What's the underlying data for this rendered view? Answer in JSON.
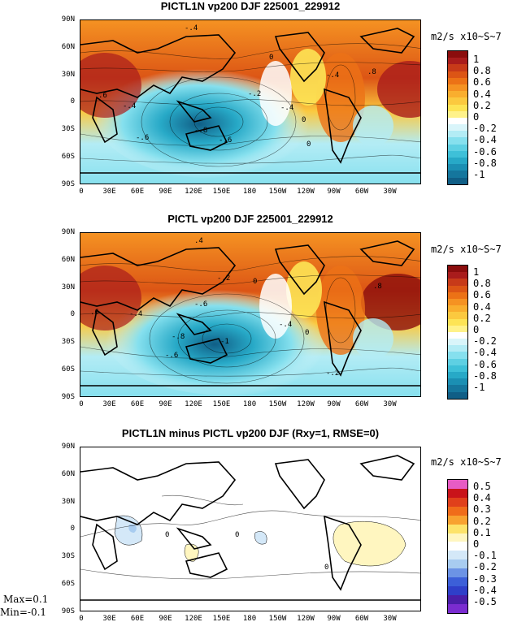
{
  "panels": [
    {
      "title": "PICTL1N vp200 DJF 225001_229912",
      "units": "m2/s x10~S~7",
      "colorbar_labels": [
        "1",
        "0.8",
        "0.6",
        "0.4",
        "0.2",
        "0",
        "-0.2",
        "-0.4",
        "-0.6",
        "-0.8",
        "-1"
      ],
      "contour_labels": [
        "-.4",
        "0",
        "-.2",
        "-.4",
        ".8",
        ".6",
        "-.4",
        "-.6",
        "-.8",
        "0",
        "-.4",
        "-.6",
        "0"
      ]
    },
    {
      "title": "PICTL vp200 DJF 225001_229912",
      "units": "m2/s x10~S~7",
      "colorbar_labels": [
        "1",
        "0.8",
        "0.6",
        "0.4",
        "0.2",
        "0",
        "-0.2",
        "-0.4",
        "-0.6",
        "-0.8",
        "-1"
      ],
      "contour_labels": [
        ".4",
        "0",
        "-.2",
        ".6",
        ".8",
        "-.4",
        "-.6",
        "-.4",
        "-.8",
        "-1",
        "-.6",
        "0",
        "-.2"
      ]
    },
    {
      "title": "PICTL1N minus PICTL vp200 DJF (Rxy=1, RMSE=0)",
      "units": "m2/s x10~S~7",
      "colorbar_labels": [
        "0.5",
        "0.4",
        "0.3",
        "0.2",
        "0.1",
        "0",
        "-0.1",
        "-0.2",
        "-0.3",
        "-0.4",
        "-0.5"
      ],
      "contour_labels": [
        "0",
        "0",
        "0"
      ]
    }
  ],
  "lat_labels": [
    "90N",
    "60N",
    "30N",
    "0",
    "30S",
    "60S",
    "90S"
  ],
  "lon_labels": [
    "0",
    "30E",
    "60E",
    "90E",
    "120E",
    "150E",
    "180",
    "150W",
    "120W",
    "90W",
    "60W",
    "30W"
  ],
  "stats": {
    "max": "Max=0.1",
    "min": "Min=-0.1"
  },
  "colors": {
    "main_scale": [
      "#8b0d0d",
      "#a91c1c",
      "#c73a19",
      "#dc5515",
      "#ec7216",
      "#f59222",
      "#f9ae2e",
      "#fbc93f",
      "#fde455",
      "#fff28a",
      "#ffffff",
      "#d9f5fa",
      "#b3ecf5",
      "#86e0ee",
      "#5ed0e3",
      "#3ec0d8",
      "#27a9c7",
      "#1b8fb3",
      "#15769d",
      "#105e86"
    ],
    "diff_scale": [
      "#e75cc4",
      "#c9131a",
      "#e0401b",
      "#f06c1a",
      "#f8a230",
      "#fde36a",
      "#fff6c0",
      "#ffffff",
      "#d4e8f8",
      "#a8ccf0",
      "#6c93e5",
      "#3c5fd8",
      "#2f3fc9",
      "#4a1ea8",
      "#7a2cd0"
    ]
  }
}
